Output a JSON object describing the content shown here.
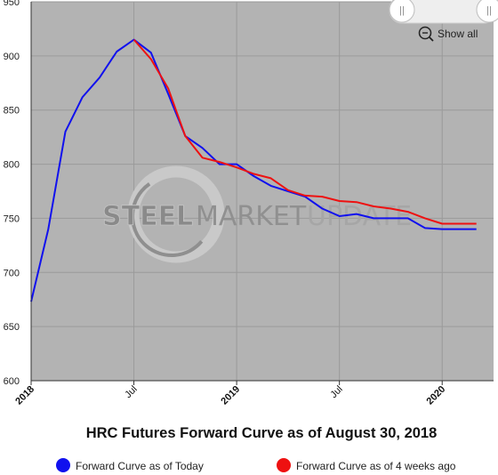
{
  "chart_data": {
    "type": "line",
    "title": "HRC Futures Forward Curve as of August 30, 2018",
    "xlabel": "",
    "ylabel": "",
    "ylim": [
      600,
      950
    ],
    "yticks": [
      600,
      650,
      700,
      750,
      800,
      850,
      900,
      950
    ],
    "xlim": [
      "2018-01",
      "2020-04"
    ],
    "xticks": [
      {
        "label": "2018",
        "x": "2018-01",
        "bold": true
      },
      {
        "label": "Jul",
        "x": "2018-07",
        "bold": false
      },
      {
        "label": "2019",
        "x": "2019-01",
        "bold": true
      },
      {
        "label": "Jul",
        "x": "2019-07",
        "bold": false
      },
      {
        "label": "2020",
        "x": "2020-01",
        "bold": true
      }
    ],
    "grid": true,
    "legend_position": "bottom",
    "series": [
      {
        "name": "Forward Curve as of Today",
        "color": "#1111ee",
        "points": [
          [
            "2018-01",
            673
          ],
          [
            "2018-02",
            740
          ],
          [
            "2018-03",
            830
          ],
          [
            "2018-04",
            862
          ],
          [
            "2018-05",
            880
          ],
          [
            "2018-06",
            904
          ],
          [
            "2018-07",
            915
          ],
          [
            "2018-08",
            903
          ],
          [
            "2018-09",
            865
          ],
          [
            "2018-10",
            826
          ],
          [
            "2018-11",
            815
          ],
          [
            "2018-12",
            800
          ],
          [
            "2019-01",
            800
          ],
          [
            "2019-02",
            789
          ],
          [
            "2019-03",
            780
          ],
          [
            "2019-04",
            775
          ],
          [
            "2019-05",
            770
          ],
          [
            "2019-06",
            759
          ],
          [
            "2019-07",
            752
          ],
          [
            "2019-08",
            754
          ],
          [
            "2019-09",
            750
          ],
          [
            "2019-10",
            750
          ],
          [
            "2019-11",
            750
          ],
          [
            "2019-12",
            741
          ],
          [
            "2020-01",
            740
          ],
          [
            "2020-02",
            740
          ],
          [
            "2020-03",
            740
          ]
        ]
      },
      {
        "name": "Forward Curve as of 4 weeks ago",
        "color": "#ee1111",
        "points": [
          [
            "2018-07",
            915
          ],
          [
            "2018-08",
            897
          ],
          [
            "2018-09",
            870
          ],
          [
            "2018-10",
            826
          ],
          [
            "2018-11",
            806
          ],
          [
            "2018-12",
            802
          ],
          [
            "2019-01",
            797
          ],
          [
            "2019-02",
            791
          ],
          [
            "2019-03",
            787
          ],
          [
            "2019-04",
            776
          ],
          [
            "2019-05",
            771
          ],
          [
            "2019-06",
            770
          ],
          [
            "2019-07",
            766
          ],
          [
            "2019-08",
            765
          ],
          [
            "2019-09",
            761
          ],
          [
            "2019-10",
            759
          ],
          [
            "2019-11",
            756
          ],
          [
            "2019-12",
            750
          ],
          [
            "2020-01",
            745
          ],
          [
            "2020-02",
            745
          ],
          [
            "2020-03",
            745
          ]
        ]
      }
    ]
  },
  "watermark": {
    "word1": "STEEL",
    "word2": "MARKET",
    "word3": "UPDATE"
  },
  "toolbar": {
    "show_all_label": "Show all",
    "slider_handle_glyph": "||"
  },
  "colors": {
    "plot_background": "#b3b3b3",
    "watermark_text": "#8a8a8a",
    "grid": "#9a9a9a"
  },
  "icons": {
    "zoom_out": "zoom-out-icon",
    "slider_handle": "slider-handle-icon"
  }
}
